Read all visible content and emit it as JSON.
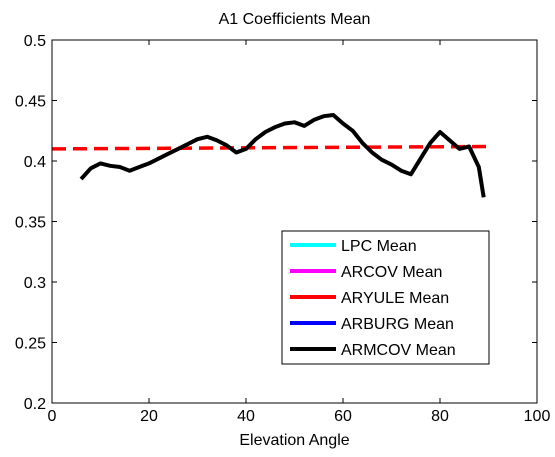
{
  "chart_data": {
    "type": "line",
    "title": "A1 Coefficients Mean",
    "xlabel": "Elevation Angle",
    "ylabel": "",
    "xlim": [
      0,
      100
    ],
    "ylim": [
      0.2,
      0.5
    ],
    "xticks": [
      0,
      20,
      40,
      60,
      80,
      100
    ],
    "xtick_labels": [
      "0",
      "20",
      "40",
      "60",
      "80",
      "100"
    ],
    "yticks": [
      0.2,
      0.25,
      0.3,
      0.35,
      0.4,
      0.45,
      0.5
    ],
    "ytick_labels": [
      "0.2",
      "0.25",
      "0.3",
      "0.35",
      "0.4",
      "0.45",
      "0.5"
    ],
    "grid": false,
    "legend_position": "bottom-right",
    "legend": [
      {
        "label": "LPC Mean",
        "color": "#00ffff"
      },
      {
        "label": "ARCOV Mean",
        "color": "#ff00ff"
      },
      {
        "label": "ARYULE Mean",
        "color": "#ff0000"
      },
      {
        "label": "ARBURG Mean",
        "color": "#0000ff"
      },
      {
        "label": "ARMCOV Mean",
        "color": "#000000"
      }
    ],
    "series": [
      {
        "name": "ARYULE Mean",
        "color": "#ff0000",
        "style": "dashed",
        "x": [
          0,
          90
        ],
        "y": [
          0.41,
          0.412
        ]
      },
      {
        "name": "ARMCOV Mean",
        "color": "#000000",
        "style": "solid",
        "x": [
          6,
          8,
          10,
          12,
          14,
          16,
          18,
          20,
          22,
          24,
          26,
          28,
          30,
          32,
          34,
          36,
          38,
          40,
          42,
          44,
          46,
          48,
          50,
          52,
          54,
          56,
          58,
          60,
          62,
          64,
          66,
          68,
          70,
          72,
          74,
          76,
          78,
          80,
          82,
          84,
          86,
          88,
          89
        ],
        "y": [
          0.385,
          0.394,
          0.398,
          0.396,
          0.395,
          0.392,
          0.395,
          0.398,
          0.402,
          0.406,
          0.41,
          0.414,
          0.418,
          0.42,
          0.417,
          0.413,
          0.407,
          0.41,
          0.418,
          0.424,
          0.428,
          0.431,
          0.432,
          0.429,
          0.434,
          0.437,
          0.438,
          0.431,
          0.425,
          0.415,
          0.407,
          0.401,
          0.397,
          0.392,
          0.389,
          0.402,
          0.415,
          0.424,
          0.417,
          0.41,
          0.412,
          0.395,
          0.37
        ]
      }
    ]
  }
}
